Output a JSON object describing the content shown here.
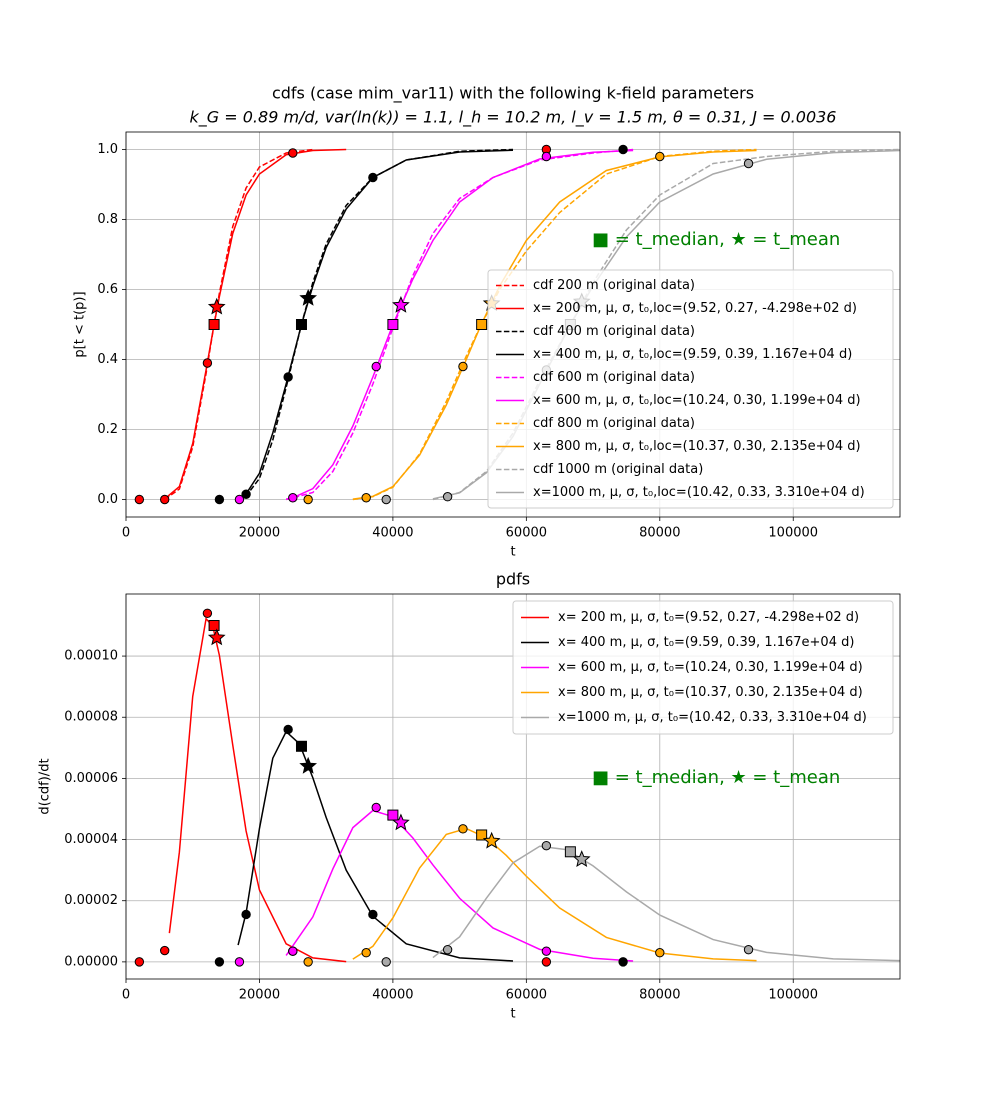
{
  "chart_data": [
    {
      "type": "line",
      "title": "cdfs (case mim_var11) with the following k-field parameters",
      "subtitle": "k_G = 0.89 m/d, var(ln(k)) = 1.1, l_h = 10.2 m, l_v = 1.5 m, θ = 0.31, J = 0.0036",
      "x_label": "t",
      "y_label": "p[t < t(p)]",
      "xlim": [
        0,
        116000
      ],
      "xticks": [
        0,
        20000,
        40000,
        60000,
        80000,
        100000
      ],
      "ylim": [
        -0.05,
        1.05
      ],
      "yticks": [
        {
          "value": 0,
          "label": "0.0"
        },
        0.2,
        0.4,
        0.6,
        0.8,
        {
          "value": 1,
          "label": "1.0"
        }
      ],
      "grid": true,
      "legend": "lower right",
      "annotation": "■ = t_median,  ★ = t_mean",
      "series": [
        {
          "name": "cdf 200 m (original data)",
          "color": "#ff0000",
          "linestyle": "dashed",
          "x": [
            5800,
            8000,
            10000,
            12000,
            13200,
            14000,
            16000,
            18000,
            20000,
            24000,
            28000
          ],
          "values": [
            0,
            0.03,
            0.15,
            0.36,
            0.5,
            0.59,
            0.78,
            0.89,
            0.95,
            0.99,
            1.0
          ]
        },
        {
          "name": "x= 200 m, μ, σ, t₀,loc=(9.52, 0.27, -4.298e+02 d)",
          "color": "#ff0000",
          "linestyle": "solid",
          "x": [
            5800,
            8000,
            10000,
            12000,
            13200,
            14000,
            16000,
            18000,
            20000,
            24000,
            28000,
            33000
          ],
          "values": [
            0.002,
            0.037,
            0.16,
            0.37,
            0.5,
            0.58,
            0.76,
            0.87,
            0.93,
            0.985,
            0.997,
            1.0
          ]
        },
        {
          "name": "cdf 400 m (original data)",
          "color": "#000000",
          "linestyle": "dashed",
          "x": [
            16800,
            18000,
            20000,
            22000,
            24000,
            26300,
            28000,
            30000,
            33000,
            37000,
            42000,
            50000,
            58000
          ],
          "values": [
            0,
            0.01,
            0.06,
            0.17,
            0.32,
            0.5,
            0.62,
            0.73,
            0.84,
            0.92,
            0.97,
            0.995,
            1.0
          ]
        },
        {
          "name": "x= 400 m, μ, σ, t₀,loc=(9.59, 0.39, 1.167e+04 d)",
          "color": "#000000",
          "linestyle": "solid",
          "x": [
            16800,
            18000,
            20000,
            22000,
            24000,
            26300,
            28000,
            30000,
            33000,
            37000,
            42000,
            50000,
            58000
          ],
          "values": [
            0.004,
            0.016,
            0.075,
            0.19,
            0.33,
            0.5,
            0.61,
            0.72,
            0.83,
            0.92,
            0.97,
            0.993,
            0.998
          ]
        },
        {
          "name": "cdf 600 m (original data)",
          "color": "#ff00ff",
          "linestyle": "dashed",
          "x": [
            24000,
            28000,
            31000,
            34000,
            37000,
            40000,
            43000,
            46000,
            50000,
            55000,
            62000,
            70000,
            76000
          ],
          "values": [
            0,
            0.02,
            0.08,
            0.19,
            0.33,
            0.49,
            0.64,
            0.76,
            0.86,
            0.92,
            0.97,
            0.99,
            1.0
          ]
        },
        {
          "name": "x= 600 m, μ, σ, t₀,loc=(10.24, 0.30, 1.199e+04 d)",
          "color": "#ff00ff",
          "linestyle": "solid",
          "x": [
            24000,
            25000,
            28000,
            31000,
            34000,
            37000,
            40000,
            43000,
            46000,
            50000,
            55000,
            62000,
            70000,
            76000
          ],
          "values": [
            0.001,
            0.005,
            0.031,
            0.099,
            0.21,
            0.35,
            0.5,
            0.63,
            0.74,
            0.85,
            0.92,
            0.973,
            0.992,
            0.997
          ]
        },
        {
          "name": "cdf 800 m (original data)",
          "color": "#ffa500",
          "linestyle": "dashed",
          "x": [
            34000,
            37000,
            40000,
            44000,
            48000,
            51000,
            53240,
            56000,
            60000,
            65000,
            72000,
            80000,
            88000,
            94500
          ],
          "values": [
            0,
            0.008,
            0.035,
            0.13,
            0.28,
            0.41,
            0.5,
            0.6,
            0.71,
            0.82,
            0.93,
            0.98,
            0.995,
            1.0
          ]
        },
        {
          "name": "x= 800 m, μ, σ, t₀,loc=(10.37, 0.30, 2.135e+04 d)",
          "color": "#ffa500",
          "linestyle": "solid",
          "x": [
            34000,
            37000,
            40000,
            44000,
            48000,
            51000,
            53240,
            56000,
            60000,
            65000,
            72000,
            80000,
            88000,
            94500
          ],
          "values": [
            0.001,
            0.009,
            0.037,
            0.127,
            0.27,
            0.4,
            0.5,
            0.61,
            0.74,
            0.85,
            0.94,
            0.979,
            0.993,
            0.997
          ]
        },
        {
          "name": "cdf 1000 m (original data)",
          "color": "#a9a9a9",
          "linestyle": "dashed",
          "x": [
            46000,
            50000,
            54000,
            58000,
            62000,
            66620,
            70000,
            75000,
            80000,
            88000,
            96000,
            106000,
            116000
          ],
          "values": [
            0,
            0.02,
            0.08,
            0.19,
            0.34,
            0.5,
            0.62,
            0.77,
            0.87,
            0.96,
            0.98,
            0.995,
            1.0
          ]
        },
        {
          "name": "x=1000 m, μ, σ, t₀,loc=(10.42, 0.33, 3.310e+04 d)",
          "color": "#a9a9a9",
          "linestyle": "solid",
          "x": [
            46000,
            50000,
            54000,
            58000,
            62000,
            66620,
            70000,
            75000,
            80000,
            88000,
            96000,
            106000,
            116000
          ],
          "values": [
            0.002,
            0.019,
            0.076,
            0.18,
            0.33,
            0.5,
            0.61,
            0.75,
            0.85,
            0.93,
            0.972,
            0.991,
            0.997
          ]
        }
      ],
      "markers": [
        {
          "color": "#ff0000",
          "marker": "o",
          "x": [
            2000,
            5800,
            12200,
            25000,
            63000
          ],
          "values": [
            0,
            0,
            0.39,
            0.99,
            1.0
          ]
        },
        {
          "color": "#000000",
          "marker": "o",
          "x": [
            14000,
            18000,
            24300,
            37000,
            74500
          ],
          "values": [
            0,
            0.015,
            0.35,
            0.92,
            1.0
          ]
        },
        {
          "color": "#ff00ff",
          "marker": "o",
          "x": [
            17000,
            25000,
            37500,
            63000
          ],
          "values": [
            0,
            0.005,
            0.38,
            0.98
          ]
        },
        {
          "color": "#ffa500",
          "marker": "o",
          "x": [
            27300,
            36000,
            50500,
            80000
          ],
          "values": [
            0,
            0.005,
            0.38,
            0.98
          ]
        },
        {
          "color": "#a9a9a9",
          "marker": "o",
          "x": [
            39000,
            48200,
            63000,
            93300
          ],
          "values": [
            0,
            0.008,
            0.37,
            0.96
          ]
        },
        {
          "color": "#ff0000",
          "marker": "s",
          "x": [
            13200
          ],
          "values": [
            0.5
          ]
        },
        {
          "color": "#000000",
          "marker": "s",
          "x": [
            26300
          ],
          "values": [
            0.5
          ]
        },
        {
          "color": "#ff00ff",
          "marker": "s",
          "x": [
            40000
          ],
          "values": [
            0.5
          ]
        },
        {
          "color": "#ffa500",
          "marker": "s",
          "x": [
            53300
          ],
          "values": [
            0.5
          ]
        },
        {
          "color": "#a9a9a9",
          "marker": "s",
          "x": [
            66600
          ],
          "values": [
            0.5
          ]
        },
        {
          "color": "#ff0000",
          "marker": "*",
          "x": [
            13600
          ],
          "values": [
            0.55
          ]
        },
        {
          "color": "#000000",
          "marker": "*",
          "x": [
            27300
          ],
          "values": [
            0.575
          ]
        },
        {
          "color": "#ff00ff",
          "marker": "*",
          "x": [
            41200
          ],
          "values": [
            0.555
          ]
        },
        {
          "color": "#ffa500",
          "marker": "*",
          "x": [
            54800
          ],
          "values": [
            0.56
          ]
        },
        {
          "color": "#a9a9a9",
          "marker": "*",
          "x": [
            68300
          ],
          "values": [
            0.565
          ]
        }
      ]
    },
    {
      "type": "line",
      "title": "pdfs",
      "x_label": "t",
      "y_label": "d(cdf)/dt",
      "xlim": [
        0,
        116000
      ],
      "xticks": [
        0,
        20000,
        40000,
        60000,
        80000,
        100000
      ],
      "ylim": [
        -5.6e-06,
        0.0001203
      ],
      "yticks": [
        {
          "value": 0,
          "label": "0.00000"
        },
        {
          "value": 2e-05,
          "label": "0.00002"
        },
        {
          "value": 4e-05,
          "label": "0.00004"
        },
        {
          "value": 6e-05,
          "label": "0.00006"
        },
        {
          "value": 8e-05,
          "label": "0.00008"
        },
        {
          "value": 0.0001,
          "label": "0.00010"
        }
      ],
      "grid": true,
      "legend": "upper right",
      "annotation": "■ = t_median,  ★ = t_mean",
      "series": [
        {
          "name": "x= 200 m, μ, σ, t₀=(9.52, 0.27, -4.298e+02 d)",
          "color": "#ff0000",
          "linestyle": "solid",
          "x": [
            6500,
            8000,
            10000,
            12000,
            13000,
            14000,
            16000,
            18000,
            20000,
            24000,
            28000,
            33000
          ],
          "values": [
            9.4e-06,
            3.59e-05,
            8.68e-05,
            0.0001122,
            0.0001098,
            0.0001002,
            7.09e-05,
            4.28e-05,
            2.35e-05,
            5.9e-06,
            1.3e-06,
            1e-07
          ]
        },
        {
          "name": "x= 400 m, μ, σ, t₀=(9.59, 0.39, 1.167e+04 d)",
          "color": "#000000",
          "linestyle": "solid",
          "x": [
            16800,
            18000,
            20000,
            22000,
            24000,
            26000,
            28000,
            30000,
            33000,
            37000,
            42000,
            50000,
            58000
          ],
          "values": [
            5.5e-06,
            1.6e-05,
            4.36e-05,
            6.66e-05,
            7.53e-05,
            7.13e-05,
            6.02e-05,
            4.72e-05,
            3e-05,
            1.49e-05,
            5.9e-06,
            1.3e-06,
            3e-07
          ]
        },
        {
          "name": "x= 600 m, μ, σ, t₀=(10.24, 0.30, 1.199e+04 d)",
          "color": "#ff00ff",
          "linestyle": "solid",
          "x": [
            24000,
            28000,
            31000,
            34000,
            37000,
            40000,
            43000,
            46000,
            50000,
            55000,
            62000,
            70000,
            76000
          ],
          "values": [
            2.1e-06,
            1.47e-05,
            3.04e-05,
            4.39e-05,
            4.95e-05,
            4.75e-05,
            4.05e-05,
            3.17e-05,
            2.08e-05,
            1.11e-05,
            4.1e-06,
            1.2e-06,
            3e-07
          ]
        },
        {
          "name": "x= 800 m, μ, σ, t₀=(10.37, 0.30, 2.135e+04 d)",
          "color": "#ffa500",
          "linestyle": "solid",
          "x": [
            34000,
            37000,
            40000,
            44000,
            48000,
            51000,
            54000,
            57000,
            60000,
            65000,
            72000,
            80000,
            88000,
            94500
          ],
          "values": [
            9e-07,
            5.1e-06,
            1.44e-05,
            3.07e-05,
            4.17e-05,
            4.36e-05,
            4.06e-05,
            3.48e-05,
            2.8e-05,
            1.76e-05,
            8e-06,
            2.9e-06,
            1e-06,
            4e-07
          ]
        },
        {
          "name": "x=1000 m, μ, σ, t₀=(10.42, 0.33, 3.310e+04 d)",
          "color": "#a9a9a9",
          "linestyle": "solid",
          "x": [
            46000,
            50000,
            54000,
            58000,
            62000,
            66000,
            70000,
            75000,
            80000,
            88000,
            96000,
            106000,
            116000
          ],
          "values": [
            1.4e-06,
            8.2e-06,
            2.08e-05,
            3.24e-05,
            3.78e-05,
            3.67e-05,
            3.14e-05,
            2.29e-05,
            1.53e-05,
            7.3e-06,
            3.1e-06,
            1e-06,
            4e-07
          ]
        }
      ],
      "markers": [
        {
          "color": "#ff0000",
          "marker": "o",
          "x": [
            2000,
            5800,
            12200,
            25000,
            63000
          ],
          "values": [
            0,
            3.7e-06,
            0.000114,
            3.5e-06,
            0
          ]
        },
        {
          "color": "#000000",
          "marker": "o",
          "x": [
            14000,
            18000,
            24300,
            37000,
            74500
          ],
          "values": [
            0,
            1.55e-05,
            7.6e-05,
            1.55e-05,
            0
          ]
        },
        {
          "color": "#ff00ff",
          "marker": "o",
          "x": [
            17000,
            25000,
            37500,
            63000
          ],
          "values": [
            0,
            3.5e-06,
            5.05e-05,
            3.5e-06
          ]
        },
        {
          "color": "#ffa500",
          "marker": "o",
          "x": [
            27300,
            36000,
            50500,
            80000
          ],
          "values": [
            0,
            3e-06,
            4.35e-05,
            3e-06
          ]
        },
        {
          "color": "#a9a9a9",
          "marker": "o",
          "x": [
            39000,
            48200,
            63000,
            93300
          ],
          "values": [
            0,
            4e-06,
            3.8e-05,
            4e-06
          ]
        },
        {
          "color": "#ff0000",
          "marker": "s",
          "x": [
            13200
          ],
          "values": [
            0.00011
          ]
        },
        {
          "color": "#000000",
          "marker": "s",
          "x": [
            26300
          ],
          "values": [
            7.05e-05
          ]
        },
        {
          "color": "#ff00ff",
          "marker": "s",
          "x": [
            40000
          ],
          "values": [
            4.8e-05
          ]
        },
        {
          "color": "#ffa500",
          "marker": "s",
          "x": [
            53300
          ],
          "values": [
            4.15e-05
          ]
        },
        {
          "color": "#a9a9a9",
          "marker": "s",
          "x": [
            66600
          ],
          "values": [
            3.6e-05
          ]
        },
        {
          "color": "#ff0000",
          "marker": "*",
          "x": [
            13600
          ],
          "values": [
            0.000106
          ]
        },
        {
          "color": "#000000",
          "marker": "*",
          "x": [
            27300
          ],
          "values": [
            6.4e-05
          ]
        },
        {
          "color": "#ff00ff",
          "marker": "*",
          "x": [
            41200
          ],
          "values": [
            4.55e-05
          ]
        },
        {
          "color": "#ffa500",
          "marker": "*",
          "x": [
            54800
          ],
          "values": [
            3.95e-05
          ]
        },
        {
          "color": "#a9a9a9",
          "marker": "*",
          "x": [
            68300
          ],
          "values": [
            3.35e-05
          ]
        }
      ]
    }
  ]
}
